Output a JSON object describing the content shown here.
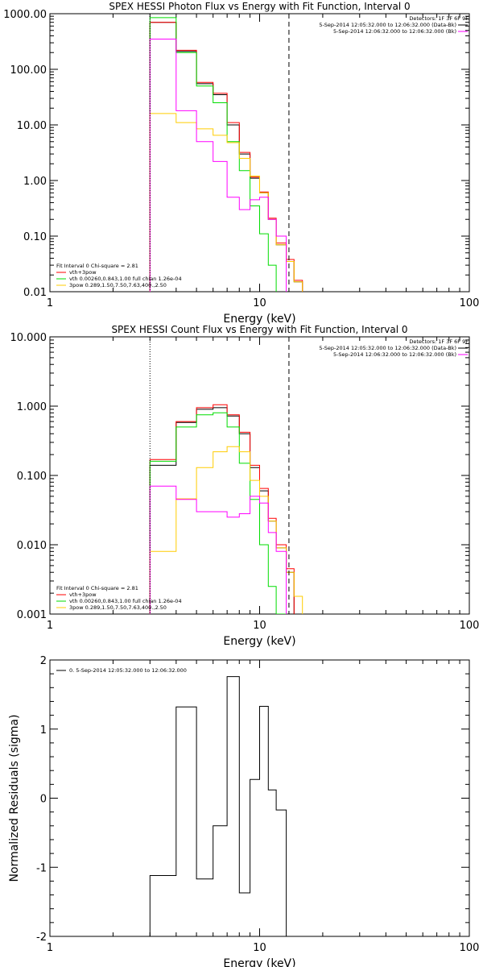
{
  "chart_data": [
    {
      "type": "line",
      "panel": "photon",
      "title": "SPEX HESSI Photon Flux vs Energy with Fit Function, Interval 0",
      "xlabel": "Energy (keV)",
      "ylabel": "",
      "xscale": "log",
      "yscale": "log",
      "xlim": [
        1,
        100
      ],
      "ylim": [
        0.01,
        1000
      ],
      "x_ticks": [
        "1",
        "10",
        "100"
      ],
      "y_ticks": [
        "0.01",
        "0.10",
        "1.00",
        "10.00",
        "100.00",
        "1000.00"
      ],
      "legend_top": {
        "header": "Detectors: 1F 3F 6F 9F",
        "entries": [
          {
            "text": "5-Sep-2014 12:05:32.000 to 12:06:32.000 (Data-Bk)",
            "color": "#000000"
          },
          {
            "text": "5-Sep-2014 12:06:32.000 to 12:06:32.000 (Bk)",
            "color": "#ff00ff"
          }
        ]
      },
      "legend_bottom": {
        "header": "Fit Interval 0   Chi-square = 2.81",
        "entries": [
          {
            "text": "vth+3pow",
            "color": "#ff0000"
          },
          {
            "text": "vth 0.00260,0.843,1.00  full chian 1.26e-04",
            "color": "#00dd00"
          },
          {
            "text": "3pow 0.289,1.50,7.50,7.63,400.,2.50",
            "color": "#ffcc00"
          }
        ]
      },
      "vlines": [
        {
          "x": 3,
          "style": "dotted",
          "color": "#000000"
        },
        {
          "x": 13.8,
          "style": "dashed",
          "color": "#000000"
        }
      ],
      "bin_edges": [
        3,
        4,
        5,
        6,
        7,
        8,
        9,
        10,
        11,
        12,
        13.4,
        14.6,
        16,
        18
      ],
      "series": [
        {
          "name": "Data-Bk",
          "color": "#000000",
          "values": [
            700,
            210,
            55,
            35,
            10,
            3.0,
            1.1,
            0.6,
            0.2,
            0.07,
            0.035,
            0.015,
            null
          ]
        },
        {
          "name": "vth+3pow",
          "color": "#ff0000",
          "values": [
            700,
            220,
            58,
            37,
            11,
            3.2,
            1.15,
            0.62,
            0.21,
            0.075,
            0.038,
            0.016,
            null
          ]
        },
        {
          "name": "vth",
          "color": "#00dd00",
          "values": [
            850,
            200,
            50,
            25,
            5.0,
            1.5,
            0.35,
            0.11,
            0.03,
            0.008,
            null,
            null,
            null
          ]
        },
        {
          "name": "3pow",
          "color": "#ffcc00",
          "values": [
            16,
            11,
            8.5,
            6.5,
            4.8,
            2.5,
            1.2,
            0.6,
            0.2,
            0.07,
            0.035,
            0.015,
            null
          ]
        },
        {
          "name": "Bk",
          "color": "#ff00ff",
          "values": [
            350,
            18,
            5.0,
            2.2,
            0.5,
            0.3,
            0.45,
            0.5,
            0.2,
            0.1,
            null,
            null,
            null
          ]
        }
      ]
    },
    {
      "type": "line",
      "panel": "count",
      "title": "SPEX HESSI Count Flux vs Energy with Fit Function, Interval 0",
      "xlabel": "Energy (keV)",
      "ylabel": "",
      "xscale": "log",
      "yscale": "log",
      "xlim": [
        1,
        100
      ],
      "ylim": [
        0.001,
        10
      ],
      "x_ticks": [
        "1",
        "10",
        "100"
      ],
      "y_ticks": [
        "0.001",
        "0.010",
        "0.100",
        "1.000",
        "10.000"
      ],
      "legend_top": {
        "header": "Detectors: 1F 3F 6F 9F",
        "entries": [
          {
            "text": "5-Sep-2014 12:05:32.000 to 12:06:32.000 (Data-Bk)",
            "color": "#000000"
          },
          {
            "text": "5-Sep-2014 12:06:32.000 to 12:06:32.000 (Bk)",
            "color": "#ff00ff"
          }
        ]
      },
      "legend_bottom": {
        "header": "Fit Interval 0   Chi-square = 2.81",
        "entries": [
          {
            "text": "vth+3pow",
            "color": "#ff0000"
          },
          {
            "text": "vth 0.00260,0.843,1.00  full chian 1.26e-04",
            "color": "#00dd00"
          },
          {
            "text": "3pow 0.289,1.50,7.50,7.63,400.,2.50",
            "color": "#ffcc00"
          }
        ]
      },
      "vlines": [
        {
          "x": 3,
          "style": "dotted",
          "color": "#000000"
        },
        {
          "x": 13.8,
          "style": "dashed",
          "color": "#000000"
        }
      ],
      "bin_edges": [
        3,
        4,
        5,
        6,
        7,
        8,
        9,
        10,
        11,
        12,
        13.4,
        14.6,
        16,
        18
      ],
      "series": [
        {
          "name": "Data-Bk",
          "color": "#000000",
          "values": [
            0.14,
            0.58,
            0.9,
            0.95,
            0.72,
            0.4,
            0.13,
            0.06,
            0.022,
            0.009,
            0.004,
            null,
            null
          ]
        },
        {
          "name": "vth+3pow",
          "color": "#ff0000",
          "values": [
            0.17,
            0.6,
            0.95,
            1.05,
            0.75,
            0.42,
            0.14,
            0.065,
            0.024,
            0.01,
            0.0045,
            null,
            null
          ]
        },
        {
          "name": "vth",
          "color": "#00dd00",
          "values": [
            0.16,
            0.5,
            0.75,
            0.8,
            0.5,
            0.15,
            0.045,
            0.01,
            0.0025,
            0.001,
            null,
            null,
            null
          ]
        },
        {
          "name": "3pow",
          "color": "#ffcc00",
          "values": [
            0.008,
            0.046,
            0.13,
            0.22,
            0.26,
            0.22,
            0.085,
            0.05,
            0.022,
            0.009,
            0.004,
            0.0018,
            null
          ]
        },
        {
          "name": "Bk",
          "color": "#ff00ff",
          "values": [
            0.07,
            0.045,
            0.03,
            0.03,
            0.025,
            0.028,
            0.05,
            0.04,
            0.015,
            0.008,
            null,
            null,
            null
          ]
        }
      ]
    },
    {
      "type": "line",
      "panel": "residuals",
      "title": "",
      "xlabel": "Energy (keV)",
      "ylabel": "Normalized Residuals (sigma)",
      "xscale": "log",
      "yscale": "linear",
      "xlim": [
        1,
        100
      ],
      "ylim": [
        -2,
        2
      ],
      "x_ticks": [
        "1",
        "10",
        "100"
      ],
      "y_ticks": [
        "-2",
        "-1",
        "0",
        "1",
        "2"
      ],
      "legend": {
        "text": "0. 5-Sep-2014 12:05:32.000 to 12:06:32.000",
        "color": "#000000"
      },
      "bin_edges": [
        3,
        4,
        5,
        6,
        7,
        8,
        9,
        10,
        11,
        12,
        13.4
      ],
      "series": [
        {
          "name": "0. 5-Sep-2014 12:05:32.000 to 12:06:32.000",
          "color": "#000000",
          "values": [
            -1.12,
            1.32,
            -1.17,
            -0.4,
            1.76,
            -1.37,
            0.27,
            1.33,
            0.12,
            -0.17
          ]
        }
      ]
    }
  ]
}
